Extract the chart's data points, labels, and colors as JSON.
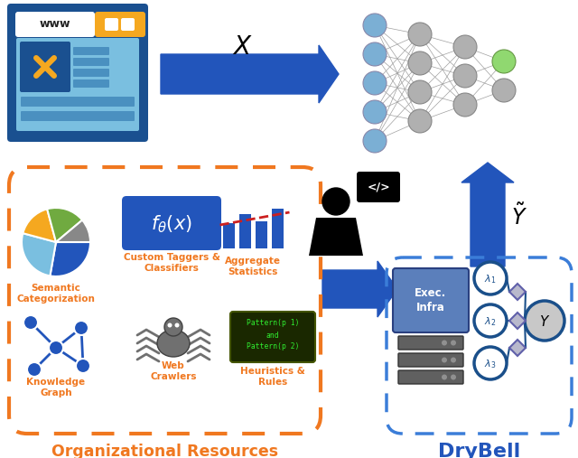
{
  "bg_color": "#ffffff",
  "orange_dashed_color": "#F07820",
  "blue_dashed_color": "#3B7DD8",
  "arrow_blue": "#2255BB",
  "drybell_label_color": "#2255BB",
  "org_resources_label_color": "#F07820",
  "nn_blue": "#7BAFD4",
  "nn_gray": "#B0B0B0",
  "nn_green": "#90D870",
  "nn_line": "#A0A0A0",
  "www_dark": "#1A5090",
  "www_mid": "#4A90C0",
  "www_light": "#7ABFE0",
  "www_yellow": "#F5A820",
  "pie_slices": [
    [
      0,
      100,
      "#2255BB"
    ],
    [
      100,
      195,
      "#7ABFE0"
    ],
    [
      195,
      255,
      "#F5A820"
    ],
    [
      255,
      320,
      "#70AA40"
    ],
    [
      320,
      360,
      "#888888"
    ]
  ],
  "bar_blue": "#2255BB",
  "bar_red": "#CC2020",
  "formula_bg": "#2255BB",
  "kg_color": "#2255BB",
  "spider_color": "#707070",
  "code_bg": "#1A2800",
  "code_text": "#30EE30",
  "exec_bg": "#5B7FBB",
  "lambda_color": "#1A4F8A",
  "Y_fill": "#C8C8C8",
  "diamond_fill": "#B8B8CC",
  "diamond_edge": "#6060AA"
}
